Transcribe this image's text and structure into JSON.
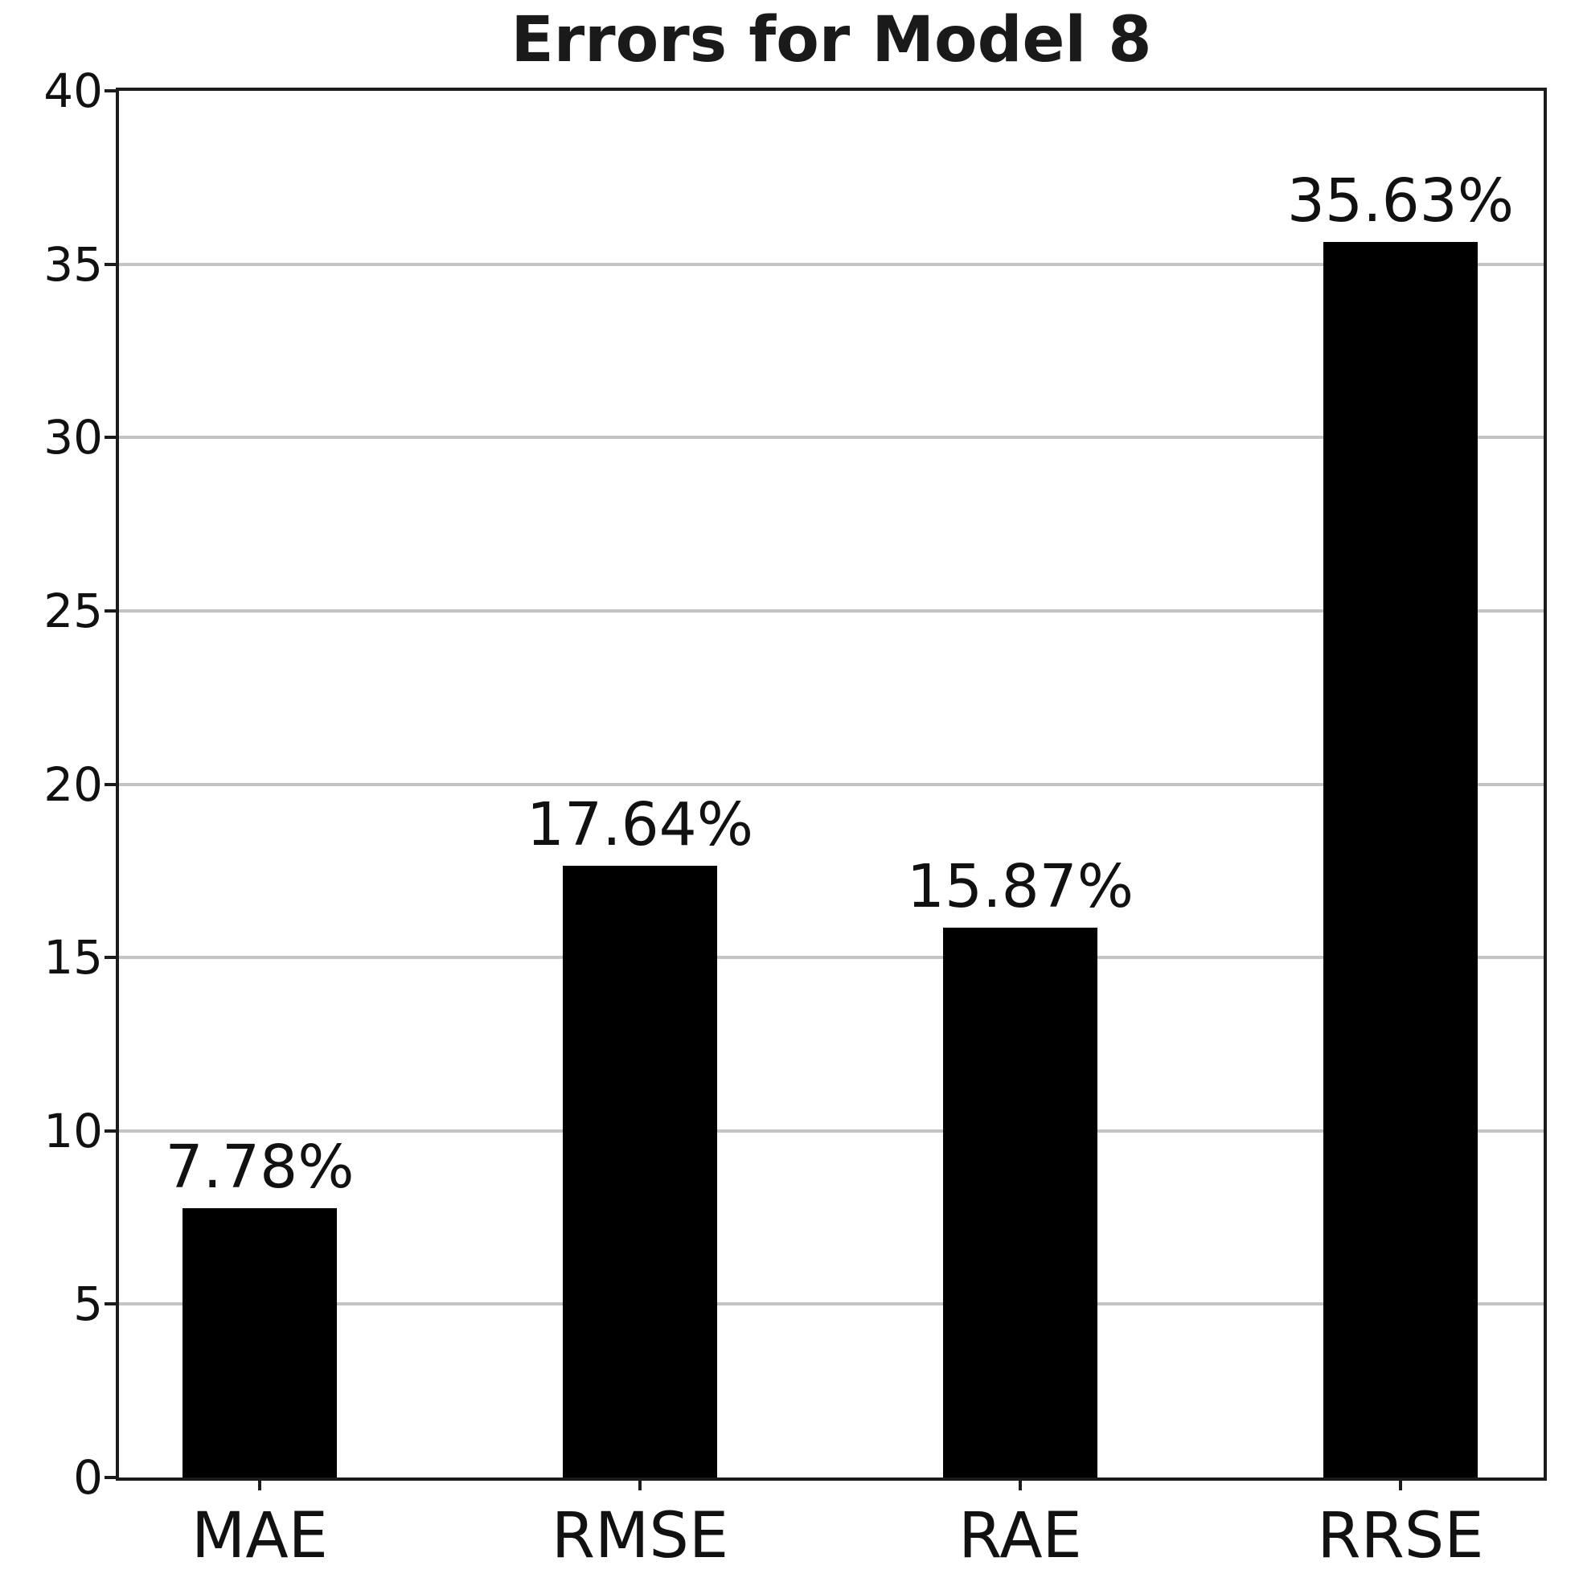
{
  "title": "Errors for Model 8",
  "chart_data": {
    "type": "bar",
    "title": "Errors for Model 8",
    "categories": [
      "MAE",
      "RMSE",
      "RAE",
      "RRSE"
    ],
    "values": [
      7.78,
      17.64,
      15.87,
      35.63
    ],
    "value_labels": [
      "7.78%",
      "17.64%",
      "15.87%",
      "35.63%"
    ],
    "xlabel": "",
    "ylabel": "",
    "ylim": [
      0,
      40
    ],
    "yticks": [
      "0",
      "5",
      "10",
      "15",
      "20",
      "25",
      "30",
      "35",
      "40"
    ],
    "grid": true,
    "legend_position": "none",
    "bar_color": "#000000",
    "gridline_color": "#c4c4c4",
    "axis_color": "#1c1c1c",
    "text_color": "#111111",
    "background_color": "#ffffff"
  }
}
